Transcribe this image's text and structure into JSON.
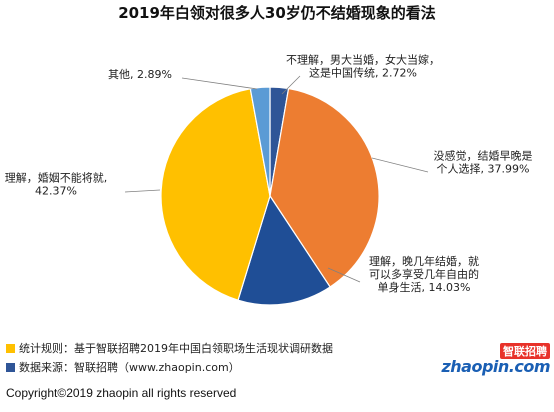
{
  "title": "2019年白领对很多人30岁仍不结婚现象的看法",
  "chart_data": {
    "type": "pie",
    "title": "2019年白领对很多人30岁仍不结婚现象的看法",
    "slices": [
      {
        "label": "不理解，男大当婚，女大当嫁，这是中国传统",
        "value": 2.72,
        "display": "2.72%",
        "color": "#2f5597",
        "label_lines": [
          "不理解，男大当婚，女大当嫁，",
          "这是中国传统, 2.72%"
        ]
      },
      {
        "label": "没感觉，结婚早晚是个人选择",
        "value": 37.99,
        "display": "37.99%",
        "color": "#ed7d31",
        "label_lines": [
          "没感觉，结婚早晚是",
          "个人选择, 37.99%"
        ]
      },
      {
        "label": "理解，晚几年结婚，就可以多享受几年自由的单身生活",
        "value": 14.03,
        "display": "14.03%",
        "color": "#1f4e96",
        "label_lines": [
          "理解，晚几年结婚，就",
          "可以多享受几年自由的",
          "单身生活, 14.03%"
        ]
      },
      {
        "label": "理解，婚姻不能将就",
        "value": 42.37,
        "display": "42.37%",
        "color": "#ffc000",
        "label_lines": [
          "理解，婚姻不能将就,",
          "42.37%"
        ]
      },
      {
        "label": "其他",
        "value": 2.89,
        "display": "2.89%",
        "color": "#5b9bd5",
        "label_lines": [
          "其他, 2.89%"
        ]
      }
    ]
  },
  "notes": [
    {
      "text": "统计规则：基于智联招聘2019年中国白领职场生活现状调研数据",
      "color": "#ffc000"
    },
    {
      "text": "数据来源：智联招聘（www.zhaopin.com）",
      "color": "#2f5597"
    }
  ],
  "logo": {
    "top": "智联招聘",
    "main": "zhaopin.com"
  },
  "copyright": "Copyright©2019 zhaopin all rights reserved"
}
